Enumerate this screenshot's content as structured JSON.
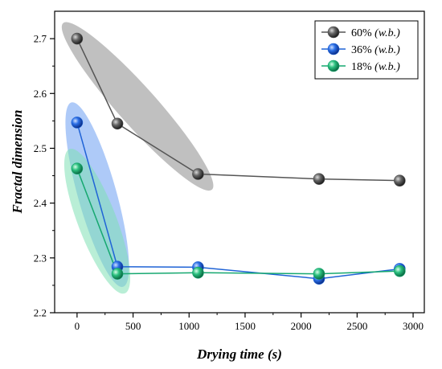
{
  "chart_data": {
    "type": "line",
    "xlabel": "Drying time (s)",
    "ylabel": "Fractal dimension",
    "xlim": [
      -200,
      3100
    ],
    "ylim": [
      2.2,
      2.75
    ],
    "xticks": [
      0,
      500,
      1000,
      1500,
      2000,
      2500,
      3000
    ],
    "yticks": [
      2.2,
      2.3,
      2.4,
      2.5,
      2.6,
      2.7
    ],
    "xtick_labels": [
      "0",
      "500",
      "1000",
      "1500",
      "2000",
      "2500",
      "3000"
    ],
    "ytick_labels": [
      "2.2",
      "2.3",
      "2.4",
      "2.5",
      "2.6",
      "2.7"
    ],
    "grid": false,
    "legend_position": "top-right",
    "series": [
      {
        "name": "60%",
        "name_suffix": "(w.b.)",
        "color": "#555555",
        "shade": "#8c8c8c",
        "x": [
          0,
          360,
          1080,
          2160,
          2880
        ],
        "y": [
          2.7,
          2.545,
          2.453,
          2.444,
          2.441
        ]
      },
      {
        "name": "36%",
        "name_suffix": "(w.b.)",
        "color": "#1f63d6",
        "shade": "#6b9ef2",
        "x": [
          0,
          360,
          1080,
          2160,
          2880
        ],
        "y": [
          2.547,
          2.284,
          2.283,
          2.262,
          2.28
        ]
      },
      {
        "name": "18%",
        "name_suffix": "(w.b.)",
        "color": "#16a870",
        "shade": "#7fe0b4",
        "x": [
          0,
          360,
          1080,
          2160,
          2880
        ],
        "y": [
          2.463,
          2.271,
          2.273,
          2.271,
          2.276
        ]
      }
    ],
    "annotations": [
      {
        "series": 0,
        "x": [
          0,
          1080
        ],
        "y": [
          2.453,
          2.7
        ]
      },
      {
        "series": 1,
        "x": [
          0,
          360
        ],
        "y": [
          2.284,
          2.547
        ]
      },
      {
        "series": 2,
        "x": [
          0,
          360
        ],
        "y": [
          2.271,
          2.463
        ]
      }
    ]
  }
}
